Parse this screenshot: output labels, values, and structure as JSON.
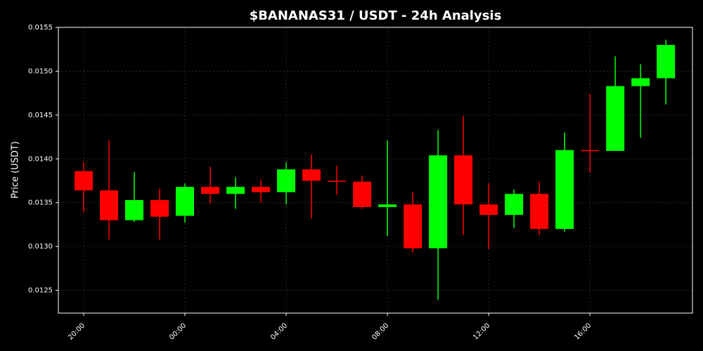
{
  "chart_data": {
    "type": "candlestick",
    "title": "$BANANAS31 / USDT - 24h Analysis",
    "y_label": "Price (USDT)",
    "categories": [
      "20:00",
      null,
      null,
      null,
      "00:00",
      null,
      null,
      null,
      "04:00",
      null,
      null,
      null,
      "08:00",
      null,
      null,
      null,
      "12:00",
      null,
      null,
      null,
      "16:00",
      null,
      null,
      null
    ],
    "open": [
      0.01386,
      0.01364,
      0.0133,
      0.01353,
      0.01335,
      0.01368,
      0.0136,
      0.01368,
      0.01362,
      0.01388,
      0.01375,
      0.01374,
      0.01345,
      0.01348,
      0.01298,
      0.01404,
      0.01348,
      0.01336,
      0.0136,
      0.0132,
      0.0141,
      0.01409,
      0.01483,
      0.01492
    ],
    "high": [
      0.01396,
      0.01421,
      0.01385,
      0.01366,
      0.01372,
      0.01391,
      0.01379,
      0.01376,
      0.01396,
      0.01405,
      0.01392,
      0.01381,
      0.01421,
      0.01362,
      0.01433,
      0.01449,
      0.01372,
      0.01365,
      0.01374,
      0.0143,
      0.01474,
      0.01517,
      0.01508,
      0.01536
    ],
    "low": [
      0.01339,
      0.01308,
      0.01328,
      0.01308,
      0.01327,
      0.01349,
      0.01343,
      0.0135,
      0.01348,
      0.01332,
      0.01359,
      0.01343,
      0.01312,
      0.01293,
      0.01239,
      0.01313,
      0.01297,
      0.01321,
      0.01313,
      0.01317,
      0.01384,
      0.01409,
      0.01424,
      0.01462
    ],
    "close": [
      0.01364,
      0.0133,
      0.01353,
      0.01334,
      0.01368,
      0.0136,
      0.01368,
      0.01362,
      0.01388,
      0.01375,
      0.01374,
      0.01345,
      0.01348,
      0.01298,
      0.01404,
      0.01348,
      0.01336,
      0.0136,
      0.0132,
      0.0141,
      0.01409,
      0.01483,
      0.01492,
      0.0153
    ],
    "up_color": "#00ff00",
    "down_color": "#ff0000",
    "ylim": [
      0.01224,
      0.0155
    ],
    "yticks": [
      0.0125,
      {
        "value": 0.013,
        "label": "0.0130"
      },
      0.0135,
      {
        "value": 0.014,
        "label": "0.0140"
      },
      0.0145,
      {
        "value": 0.015,
        "label": "0.0150"
      },
      0.0155
    ],
    "grid": true
  }
}
